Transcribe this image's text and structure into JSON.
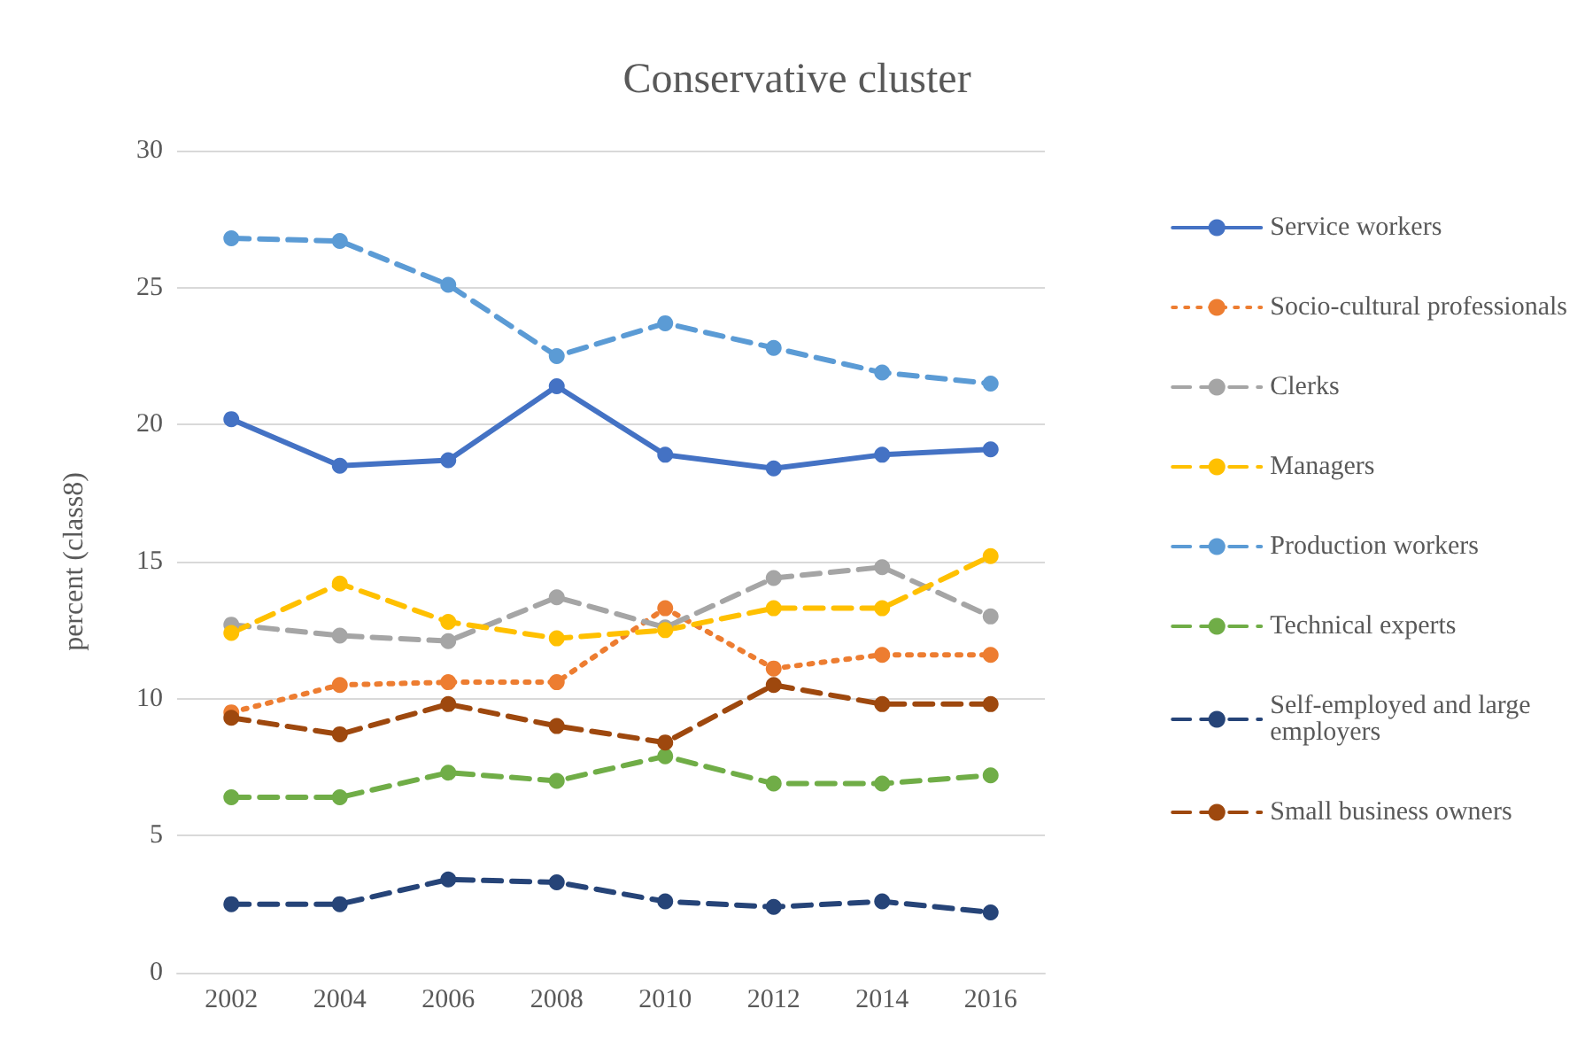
{
  "chart_data": {
    "type": "line",
    "title": "Conservative cluster",
    "ylabel": "percent (class8)",
    "categories": [
      "2002",
      "2004",
      "2006",
      "2008",
      "2010",
      "2012",
      "2014",
      "2016"
    ],
    "series": [
      {
        "name": "Service workers",
        "color": "#4472c4",
        "line_style": "solid",
        "values": [
          20.2,
          18.5,
          18.7,
          21.4,
          18.9,
          18.4,
          18.9,
          19.1
        ]
      },
      {
        "name": "Socio-cultural professionals",
        "color": "#ed7d31",
        "line_style": "dotted",
        "values": [
          9.5,
          10.5,
          10.6,
          10.6,
          13.3,
          11.1,
          11.6,
          11.6
        ]
      },
      {
        "name": "Clerks",
        "color": "#a5a5a5",
        "line_style": "dashed",
        "values": [
          12.7,
          12.3,
          12.1,
          13.7,
          12.6,
          14.4,
          14.8,
          13.0
        ]
      },
      {
        "name": "Managers",
        "color": "#ffc000",
        "line_style": "dashed",
        "values": [
          12.4,
          14.2,
          12.8,
          12.2,
          12.5,
          13.3,
          13.3,
          15.2
        ]
      },
      {
        "name": "Production workers",
        "color": "#5b9bd5",
        "line_style": "dashed",
        "values": [
          26.8,
          26.7,
          25.1,
          22.5,
          23.7,
          22.8,
          21.9,
          21.5
        ]
      },
      {
        "name": "Technical experts",
        "color": "#70ad47",
        "line_style": "dashed",
        "values": [
          6.4,
          6.4,
          7.3,
          7.0,
          7.9,
          6.9,
          6.9,
          7.2
        ]
      },
      {
        "name": "Self-employed and large employers",
        "color": "#264478",
        "line_style": "dashed",
        "values": [
          2.5,
          2.5,
          3.4,
          3.3,
          2.6,
          2.4,
          2.6,
          2.2
        ]
      },
      {
        "name": "Small business owners",
        "color": "#9e480e",
        "line_style": "dashed",
        "values": [
          9.3,
          8.7,
          9.8,
          9.0,
          8.4,
          10.5,
          9.8,
          9.8
        ]
      }
    ],
    "ylim": [
      0,
      30
    ],
    "yticks": [
      0,
      5,
      10,
      15,
      20,
      25,
      30
    ],
    "grid": "y",
    "legend": "right",
    "marker": "circle"
  }
}
